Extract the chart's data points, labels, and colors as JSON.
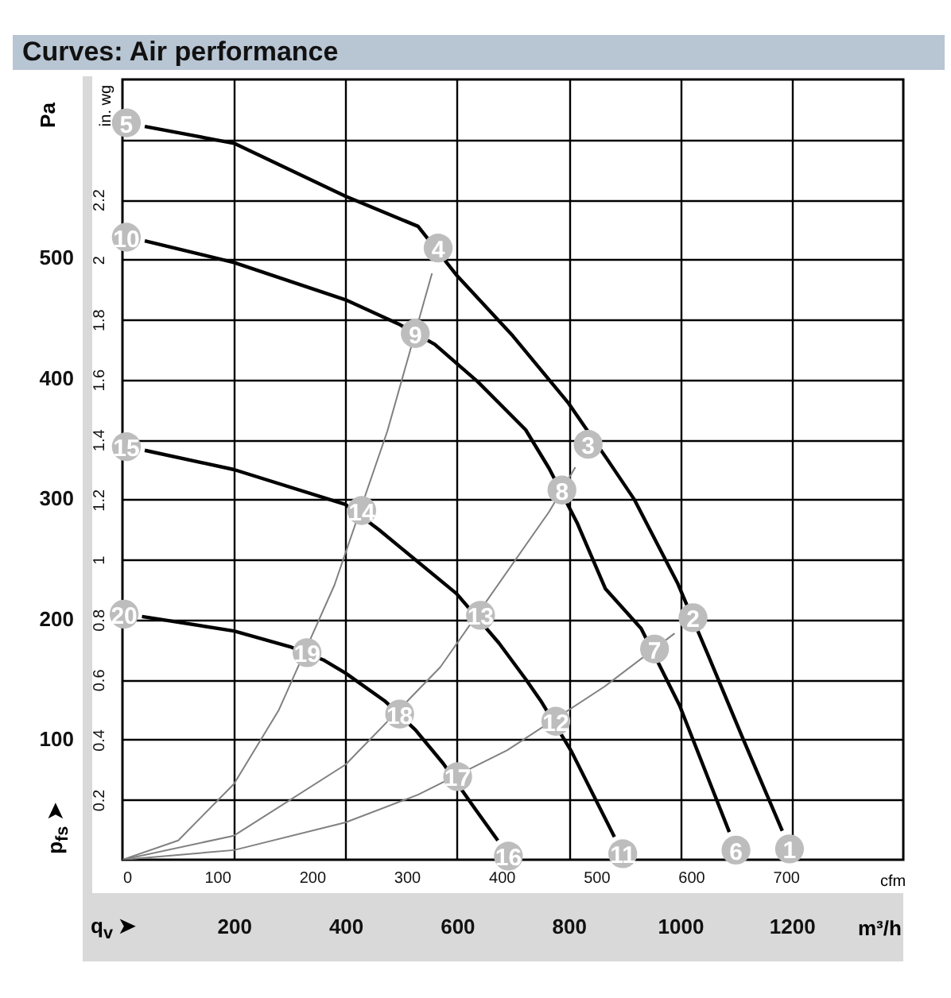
{
  "chart_data": {
    "type": "line",
    "title": "Curves: Air performance",
    "xlabel": "m³/h",
    "x2label": "cfm",
    "ylabel": "Pa",
    "y2label": "in. wg",
    "xlim": [
      0,
      1400
    ],
    "xticks": [
      200,
      400,
      600,
      800,
      1000,
      1200
    ],
    "x2lim": [
      0,
      824
    ],
    "x2ticks": [
      0,
      100,
      200,
      300,
      400,
      500,
      600,
      700
    ],
    "ylim": [
      0,
      648
    ],
    "yticks": [
      100,
      200,
      300,
      400,
      500
    ],
    "y2lim": [
      0,
      2.6
    ],
    "y2ticks": [
      0.2,
      0.4,
      0.6,
      0.8,
      1,
      1.2,
      1.4,
      1.6,
      1.8,
      2,
      2.2,
      {
        "value": 2.4,
        "label": null
      }
    ],
    "grid": true,
    "series": [
      {
        "color": "#808080",
        "x": [
          0,
          100,
          200,
          280,
          380,
          475,
          555
        ],
        "values": [
          0,
          16,
          63,
          124,
          228,
          356,
          487
        ]
      },
      {
        "color": "#808080",
        "x": [
          0,
          200,
          400,
          570,
          765,
          812
        ],
        "values": [
          0,
          20,
          79,
          160,
          289,
          326
        ]
      },
      {
        "color": "#808080",
        "x": [
          0,
          200,
          400,
          530,
          690,
          865,
          990
        ],
        "values": [
          0,
          8,
          31,
          54,
          91,
          144,
          188
        ]
      },
      {
        "color": "#000000",
        "x": [
          40,
          200,
          400,
          530,
          600,
          700,
          800,
          870,
          918,
          995,
          1050,
          1113,
          1183
        ],
        "values": [
          609,
          595,
          551,
          526,
          485,
          435,
          379,
          332,
          299,
          230,
          170,
          100,
          24
        ]
      },
      {
        "color": "#000000",
        "x": [
          40,
          200,
          400,
          495,
          560,
          637,
          723,
          765,
          815,
          866,
          930,
          999,
          1088
        ],
        "values": [
          514,
          496,
          465,
          445,
          428,
          397,
          357,
          325,
          280,
          225,
          192,
          128,
          23
        ]
      },
      {
        "color": "#000000",
        "x": [
          40,
          200,
          400,
          460,
          599,
          675,
          723,
          750,
          805,
          882
        ],
        "values": [
          340,
          324,
          295,
          274,
          221,
          180,
          150,
          132,
          90,
          19
        ]
      },
      {
        "color": "#000000",
        "x": [
          35,
          200,
          300,
          360,
          400,
          470,
          525,
          575,
          628,
          673
        ],
        "values": [
          202,
          190,
          177,
          166,
          155,
          132,
          108,
          80,
          45,
          16
        ]
      },
      {
        "type": "scatter",
        "color": "#bdbdbd",
        "marker": "circle",
        "x": [
          1196,
          1023,
          835,
          566,
          7,
          1100,
          954,
          788,
          525,
          7,
          897,
          777,
          642,
          429,
          7,
          692,
          601,
          497,
          331,
          3
        ],
        "values": [
          9,
          201,
          345,
          508,
          612,
          8,
          175,
          307,
          437,
          517,
          5,
          115,
          203,
          290,
          343,
          3,
          69,
          121,
          172,
          204
        ]
      }
    ],
    "annotations": [
      "q$_{v}$ ➤",
      "p$_{fs}$ ➤",
      {
        "text": "1",
        "x": 1196,
        "y": 9
      },
      {
        "text": "2",
        "x": 1023,
        "y": 201
      },
      {
        "text": "3",
        "x": 835,
        "y": 345
      },
      {
        "text": "4",
        "x": 566,
        "y": 508
      },
      {
        "text": "5",
        "x": 7,
        "y": 612
      },
      {
        "text": "6",
        "x": 1100,
        "y": 8
      },
      {
        "text": "7",
        "x": 954,
        "y": 175
      },
      {
        "text": "8",
        "x": 788,
        "y": 307
      },
      {
        "text": "9",
        "x": 525,
        "y": 437
      },
      {
        "text": "10",
        "x": 7,
        "y": 517
      },
      {
        "text": "11",
        "x": 897,
        "y": 5
      },
      {
        "text": "12",
        "x": 777,
        "y": 115
      },
      {
        "text": "13",
        "x": 642,
        "y": 203
      },
      {
        "text": "14",
        "x": 429,
        "y": 290
      },
      {
        "text": "15",
        "x": 7,
        "y": 343
      },
      {
        "text": "16",
        "x": 692,
        "y": 3
      },
      {
        "text": "17",
        "x": 601,
        "y": 69
      },
      {
        "text": "18",
        "x": 497,
        "y": 121
      },
      {
        "text": "19",
        "x": 331,
        "y": 172
      },
      {
        "text": "20",
        "x": 3,
        "y": 204
      }
    ]
  }
}
